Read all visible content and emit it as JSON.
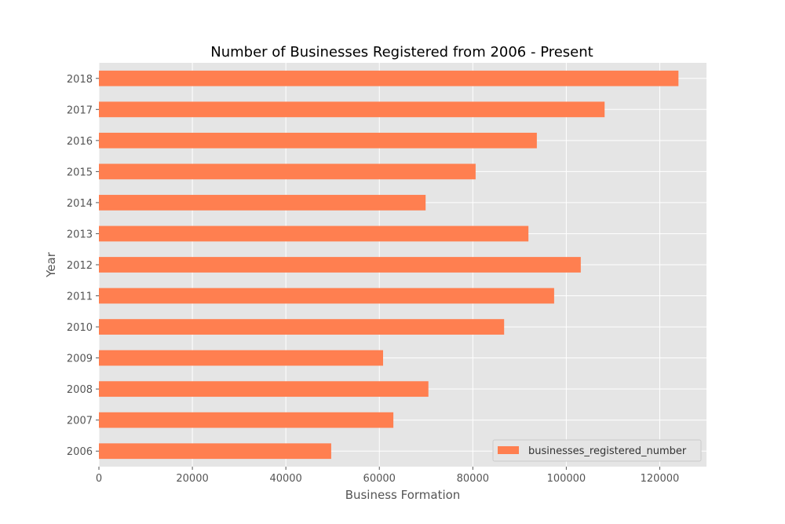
{
  "chart_data": {
    "type": "bar",
    "orientation": "horizontal",
    "title": "Number of Businesses Registered from 2006 - Present",
    "xlabel": "Business Formation",
    "ylabel": "Year",
    "categories": [
      "2006",
      "2007",
      "2008",
      "2009",
      "2010",
      "2011",
      "2012",
      "2013",
      "2014",
      "2015",
      "2016",
      "2017",
      "2018"
    ],
    "series": [
      {
        "name": "businesses_registered_number",
        "values": [
          49700,
          63000,
          70500,
          60800,
          86700,
          97400,
          103100,
          91900,
          69900,
          80600,
          93700,
          108200,
          124000
        ]
      }
    ],
    "xlim": [
      0,
      130000
    ],
    "xticks": [
      "0",
      "20000",
      "40000",
      "60000",
      "80000",
      "100000",
      "120000"
    ],
    "grid": true,
    "legend_position": "bottom-right",
    "colors": {
      "bar": "#FF7F50",
      "plot_bg": "#E5E5E5",
      "grid": "#FFFFFF"
    }
  }
}
